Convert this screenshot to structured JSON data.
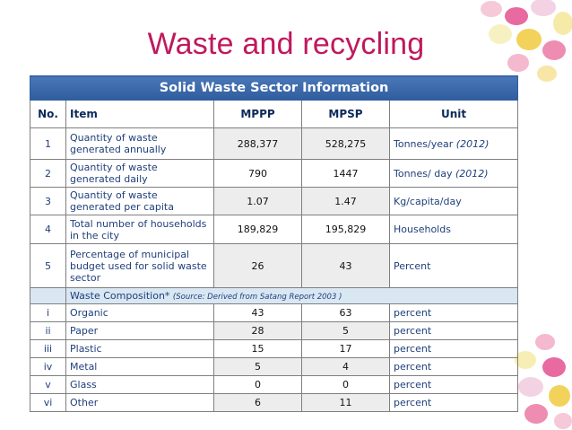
{
  "title": "Waste and recycling",
  "table": {
    "banner": "Solid Waste Sector Information",
    "headers": {
      "no": "No.",
      "item": "Item",
      "mppp": "MPPP",
      "mpsp": "MPSP",
      "unit": "Unit"
    },
    "rows": [
      {
        "no": "1",
        "item": "Quantity of waste generated annually",
        "mppp": "288,377",
        "mpsp": "528,275",
        "unit": "Tonnes/year",
        "unit_note": "(2012)"
      },
      {
        "no": "2",
        "item": "Quantity of waste generated daily",
        "mppp": "790",
        "mpsp": "1447",
        "unit": "Tonnes/ day",
        "unit_note": "(2012)"
      },
      {
        "no": "3",
        "item": "Quantity of waste generated per capita",
        "mppp": "1.07",
        "mpsp": "1.47",
        "unit": "Kg/capita/day",
        "unit_note": ""
      },
      {
        "no": "4",
        "item": "Total number of households in the city",
        "mppp": "189,829",
        "mpsp": "195,829",
        "unit": "Households",
        "unit_note": ""
      },
      {
        "no": "5",
        "item": "Percentage of municipal budget used for solid waste sector",
        "mppp": "26",
        "mpsp": "43",
        "unit": "Percent",
        "unit_note": ""
      }
    ],
    "composition_label": "Waste Composition*",
    "composition_source": "(Source: Derived from Satang Report 2003 )",
    "composition_rows": [
      {
        "no": "i",
        "item": "Organic",
        "mppp": "43",
        "mpsp": "63",
        "unit": "percent"
      },
      {
        "no": "ii",
        "item": "Paper",
        "mppp": "28",
        "mpsp": "5",
        "unit": "percent"
      },
      {
        "no": "iii",
        "item": "Plastic",
        "mppp": "15",
        "mpsp": "17",
        "unit": "percent"
      },
      {
        "no": "iv",
        "item": "Metal",
        "mppp": "5",
        "mpsp": "4",
        "unit": "percent"
      },
      {
        "no": "v",
        "item": "Glass",
        "mppp": "0",
        "mpsp": "0",
        "unit": "percent"
      },
      {
        "no": "vi",
        "item": "Other",
        "mppp": "6",
        "mpsp": "11",
        "unit": "percent"
      }
    ]
  },
  "colors": {
    "title": "#c0185e",
    "banner": "#2f5d9e",
    "text": "#1f3f7a",
    "composition_bg": "#d9e7f3"
  },
  "decorations": [
    "candy-eggs-top-right",
    "candy-eggs-bottom-right"
  ]
}
